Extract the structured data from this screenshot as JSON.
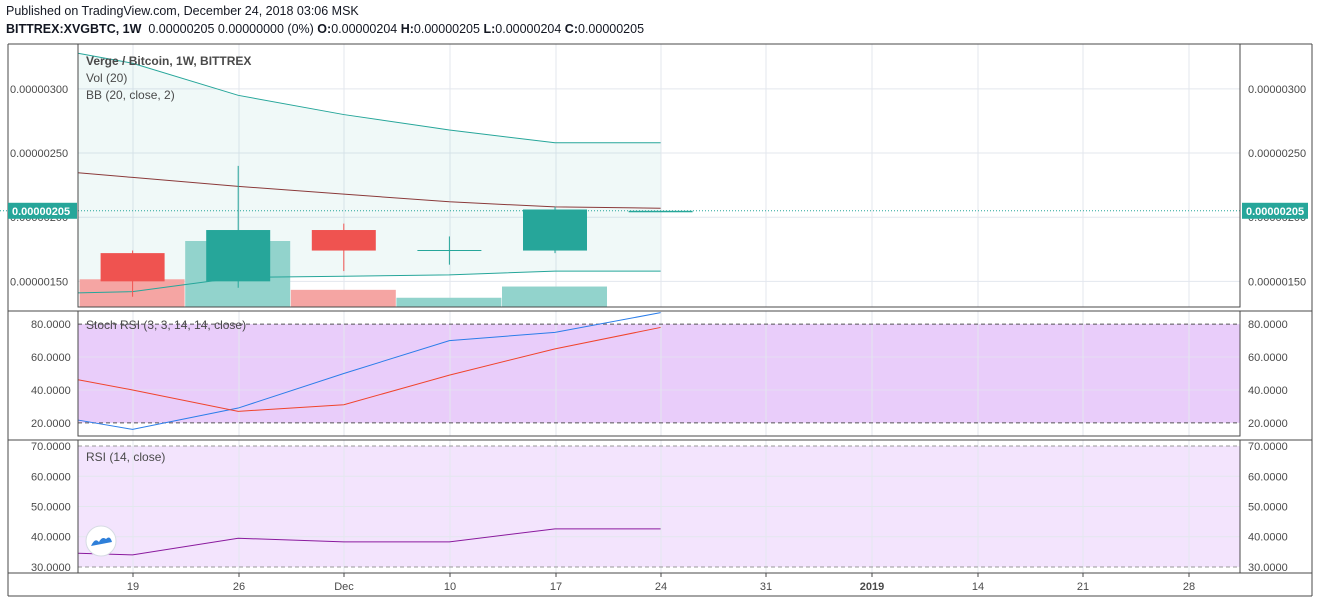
{
  "header": {
    "published": "Published on TradingView.com, December 24, 2018 03:06 MSK",
    "symbol": "BITTREX:XVGBTC, 1W",
    "last": "0.00000205",
    "change": "0.00000000 (0%)",
    "o_label": "O:",
    "o": "0.00000204",
    "h_label": "H:",
    "h": "0.00000205",
    "l_label": "L:",
    "l": "0.00000204",
    "c_label": "C:",
    "c": "0.00000205"
  },
  "colors": {
    "up": "#26a69a",
    "down": "#ef5350",
    "up_vol": "#92d3cc",
    "down_vol": "#f5a5a3",
    "bb_band": "#26a69a",
    "bb_basis": "#8b3a3a",
    "stoch_k": "#2b7de9",
    "stoch_d": "#f0442c",
    "rsi": "#8a1a9e",
    "stoch_bg": "#e9cdfa",
    "rsi_bg": "#f3e4fd",
    "price_label": "#26a69a"
  },
  "chart_data": [
    {
      "type": "candlestick",
      "title": "Verge / Bitcoin, 1W, BITTREX",
      "ylim": [
        1.3e-06,
        3.35e-06
      ],
      "y_ticks": [
        "0.00000300",
        "0.00000250",
        "0.00000150"
      ],
      "last_price_label": "0.00000205",
      "indicator_labels": [
        "Vol (20)",
        "BB (20, close, 2)"
      ],
      "candles": [
        {
          "date": "Nov 19",
          "open": 1.72e-06,
          "high": 1.74e-06,
          "low": 1.38e-06,
          "close": 1.5e-06
        },
        {
          "date": "Nov 26",
          "open": 1.5e-06,
          "high": 2.4e-06,
          "low": 1.45e-06,
          "close": 1.9e-06
        },
        {
          "date": "Dec 03",
          "open": 1.9e-06,
          "high": 1.95e-06,
          "low": 1.58e-06,
          "close": 1.74e-06
        },
        {
          "date": "Dec 10",
          "open": 1.74e-06,
          "high": 1.85e-06,
          "low": 1.63e-06,
          "close": 1.74e-06
        },
        {
          "date": "Dec 17",
          "open": 1.74e-06,
          "high": 2.08e-06,
          "low": 1.72e-06,
          "close": 2.06e-06
        },
        {
          "date": "Dec 24",
          "open": 2.04e-06,
          "high": 2.05e-06,
          "low": 2.04e-06,
          "close": 2.05e-06
        }
      ],
      "volume_relative": [
        0.42,
        1.0,
        0.26,
        0.14,
        0.31,
        0
      ],
      "bollinger": {
        "dates": [
          "Nov 12",
          "Nov 19",
          "Nov 26",
          "Dec 03",
          "Dec 10",
          "Dec 17",
          "Dec 24"
        ],
        "upper": [
          3.35e-06,
          3.2e-06,
          2.95e-06,
          2.8e-06,
          2.68e-06,
          2.58e-06,
          2.58e-06
        ],
        "basis": [
          2.38e-06,
          2.31e-06,
          2.24e-06,
          2.18e-06,
          2.12e-06,
          2.08e-06,
          2.07e-06
        ],
        "lower": [
          1.4e-06,
          1.42e-06,
          1.53e-06,
          1.54e-06,
          1.55e-06,
          1.58e-06,
          1.58e-06
        ]
      }
    },
    {
      "type": "line",
      "title": "Stoch RSI (3, 3, 14, 14, close)",
      "ylim": [
        12,
        88
      ],
      "y_ticks": [
        "80.0000",
        "60.0000",
        "40.0000",
        "20.0000"
      ],
      "band": [
        20,
        80
      ],
      "x": [
        "Nov 12",
        "Nov 19",
        "Nov 26",
        "Dec 03",
        "Dec 10",
        "Dec 17",
        "Dec 24"
      ],
      "series": [
        {
          "name": "K",
          "values": [
            27,
            16,
            29,
            50,
            70,
            75,
            87
          ]
        },
        {
          "name": "D",
          "values": [
            52,
            40,
            27,
            31,
            49,
            65,
            78
          ]
        }
      ]
    },
    {
      "type": "line",
      "title": "RSI (14, close)",
      "ylim": [
        28,
        72
      ],
      "y_ticks": [
        "70.0000",
        "60.0000",
        "50.0000",
        "40.0000",
        "30.0000"
      ],
      "band": [
        30,
        70
      ],
      "x": [
        "Nov 12",
        "Nov 19",
        "Nov 26",
        "Dec 03",
        "Dec 10",
        "Dec 17",
        "Dec 24"
      ],
      "series": [
        {
          "name": "RSI",
          "values": [
            35,
            34,
            39.5,
            38.3,
            38.3,
            42.6,
            42.6
          ]
        }
      ]
    }
  ],
  "x_axis": {
    "ticks": [
      "19",
      "26",
      "Dec",
      "10",
      "17",
      "24",
      "31",
      "2019",
      "14",
      "21",
      "28"
    ],
    "bold": [
      "2019"
    ]
  }
}
